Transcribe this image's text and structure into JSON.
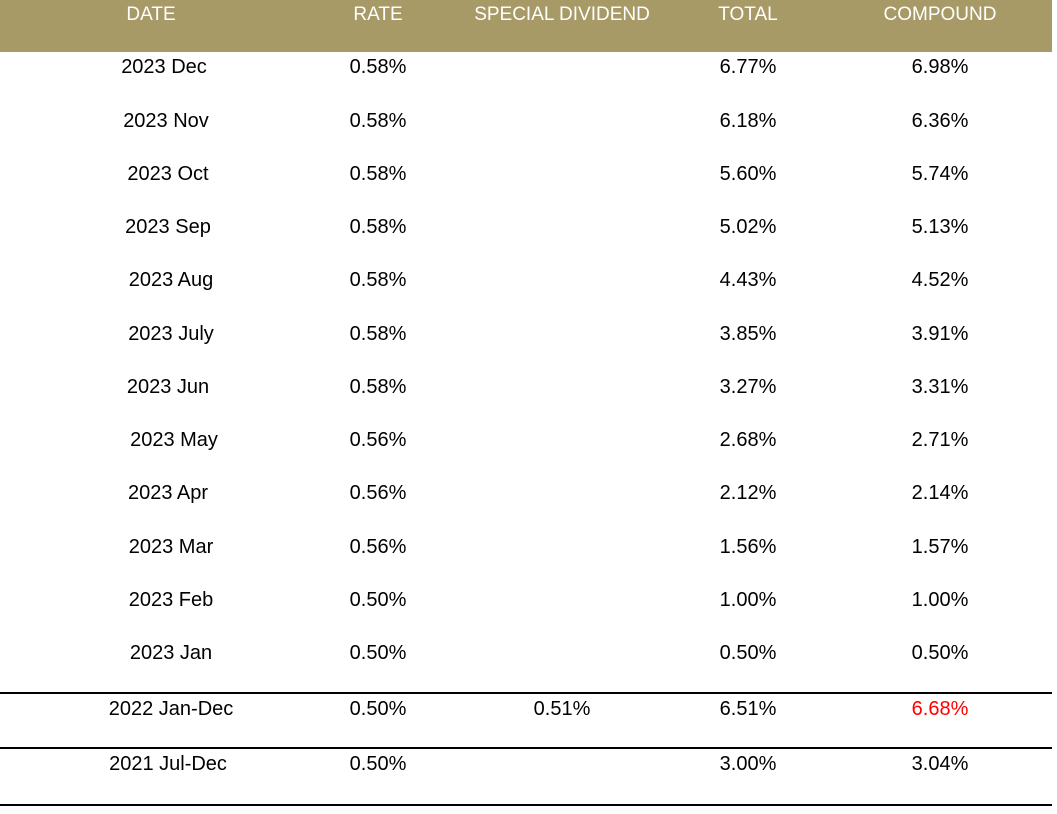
{
  "headers": {
    "date": "DATE",
    "rate": "RATE",
    "special": "SPECIAL DIVIDEND",
    "total": "TOTAL",
    "compound": "COMPOUND"
  },
  "rows": [
    {
      "date": "2023 Dec",
      "rate": "0.58%",
      "special": "",
      "total": "6.77%",
      "compound": "6.98%"
    },
    {
      "date": "2023 Nov",
      "rate": "0.58%",
      "special": "",
      "total": "6.18%",
      "compound": "6.36%"
    },
    {
      "date": "2023 Oct",
      "rate": "0.58%",
      "special": "",
      "total": "5.60%",
      "compound": "5.74%"
    },
    {
      "date": "2023 Sep",
      "rate": "0.58%",
      "special": "",
      "total": "5.02%",
      "compound": "5.13%"
    },
    {
      "date": "2023 Aug",
      "rate": "0.58%",
      "special": "",
      "total": "4.43%",
      "compound": "4.52%"
    },
    {
      "date": "2023 July",
      "rate": "0.58%",
      "special": "",
      "total": "3.85%",
      "compound": "3.91%"
    },
    {
      "date": "2023 Jun",
      "rate": "0.58%",
      "special": "",
      "total": "3.27%",
      "compound": "3.31%"
    },
    {
      "date": "2023 May",
      "rate": "0.56%",
      "special": "",
      "total": "2.68%",
      "compound": "2.71%"
    },
    {
      "date": "2023 Apr",
      "rate": "0.56%",
      "special": "",
      "total": "2.12%",
      "compound": "2.14%"
    },
    {
      "date": "2023 Mar",
      "rate": "0.56%",
      "special": "",
      "total": "1.56%",
      "compound": "1.57%"
    },
    {
      "date": "2023 Feb",
      "rate": "0.50%",
      "special": "",
      "total": "1.00%",
      "compound": "1.00%"
    },
    {
      "date": "2023 Jan",
      "rate": "0.50%",
      "special": "",
      "total": "0.50%",
      "compound": "0.50%"
    },
    {
      "date": "2022 Jan-Dec",
      "rate": "0.50%",
      "special": "0.51%",
      "total": "6.51%",
      "compound": "6.68%"
    },
    {
      "date": "2021 Jul-Dec",
      "rate": "0.50%",
      "special": "",
      "total": "3.00%",
      "compound": "3.04%"
    }
  ],
  "colors": {
    "header_bg": "#a89a66",
    "header_text": "#ffffff",
    "highlight": "#ff0000"
  }
}
